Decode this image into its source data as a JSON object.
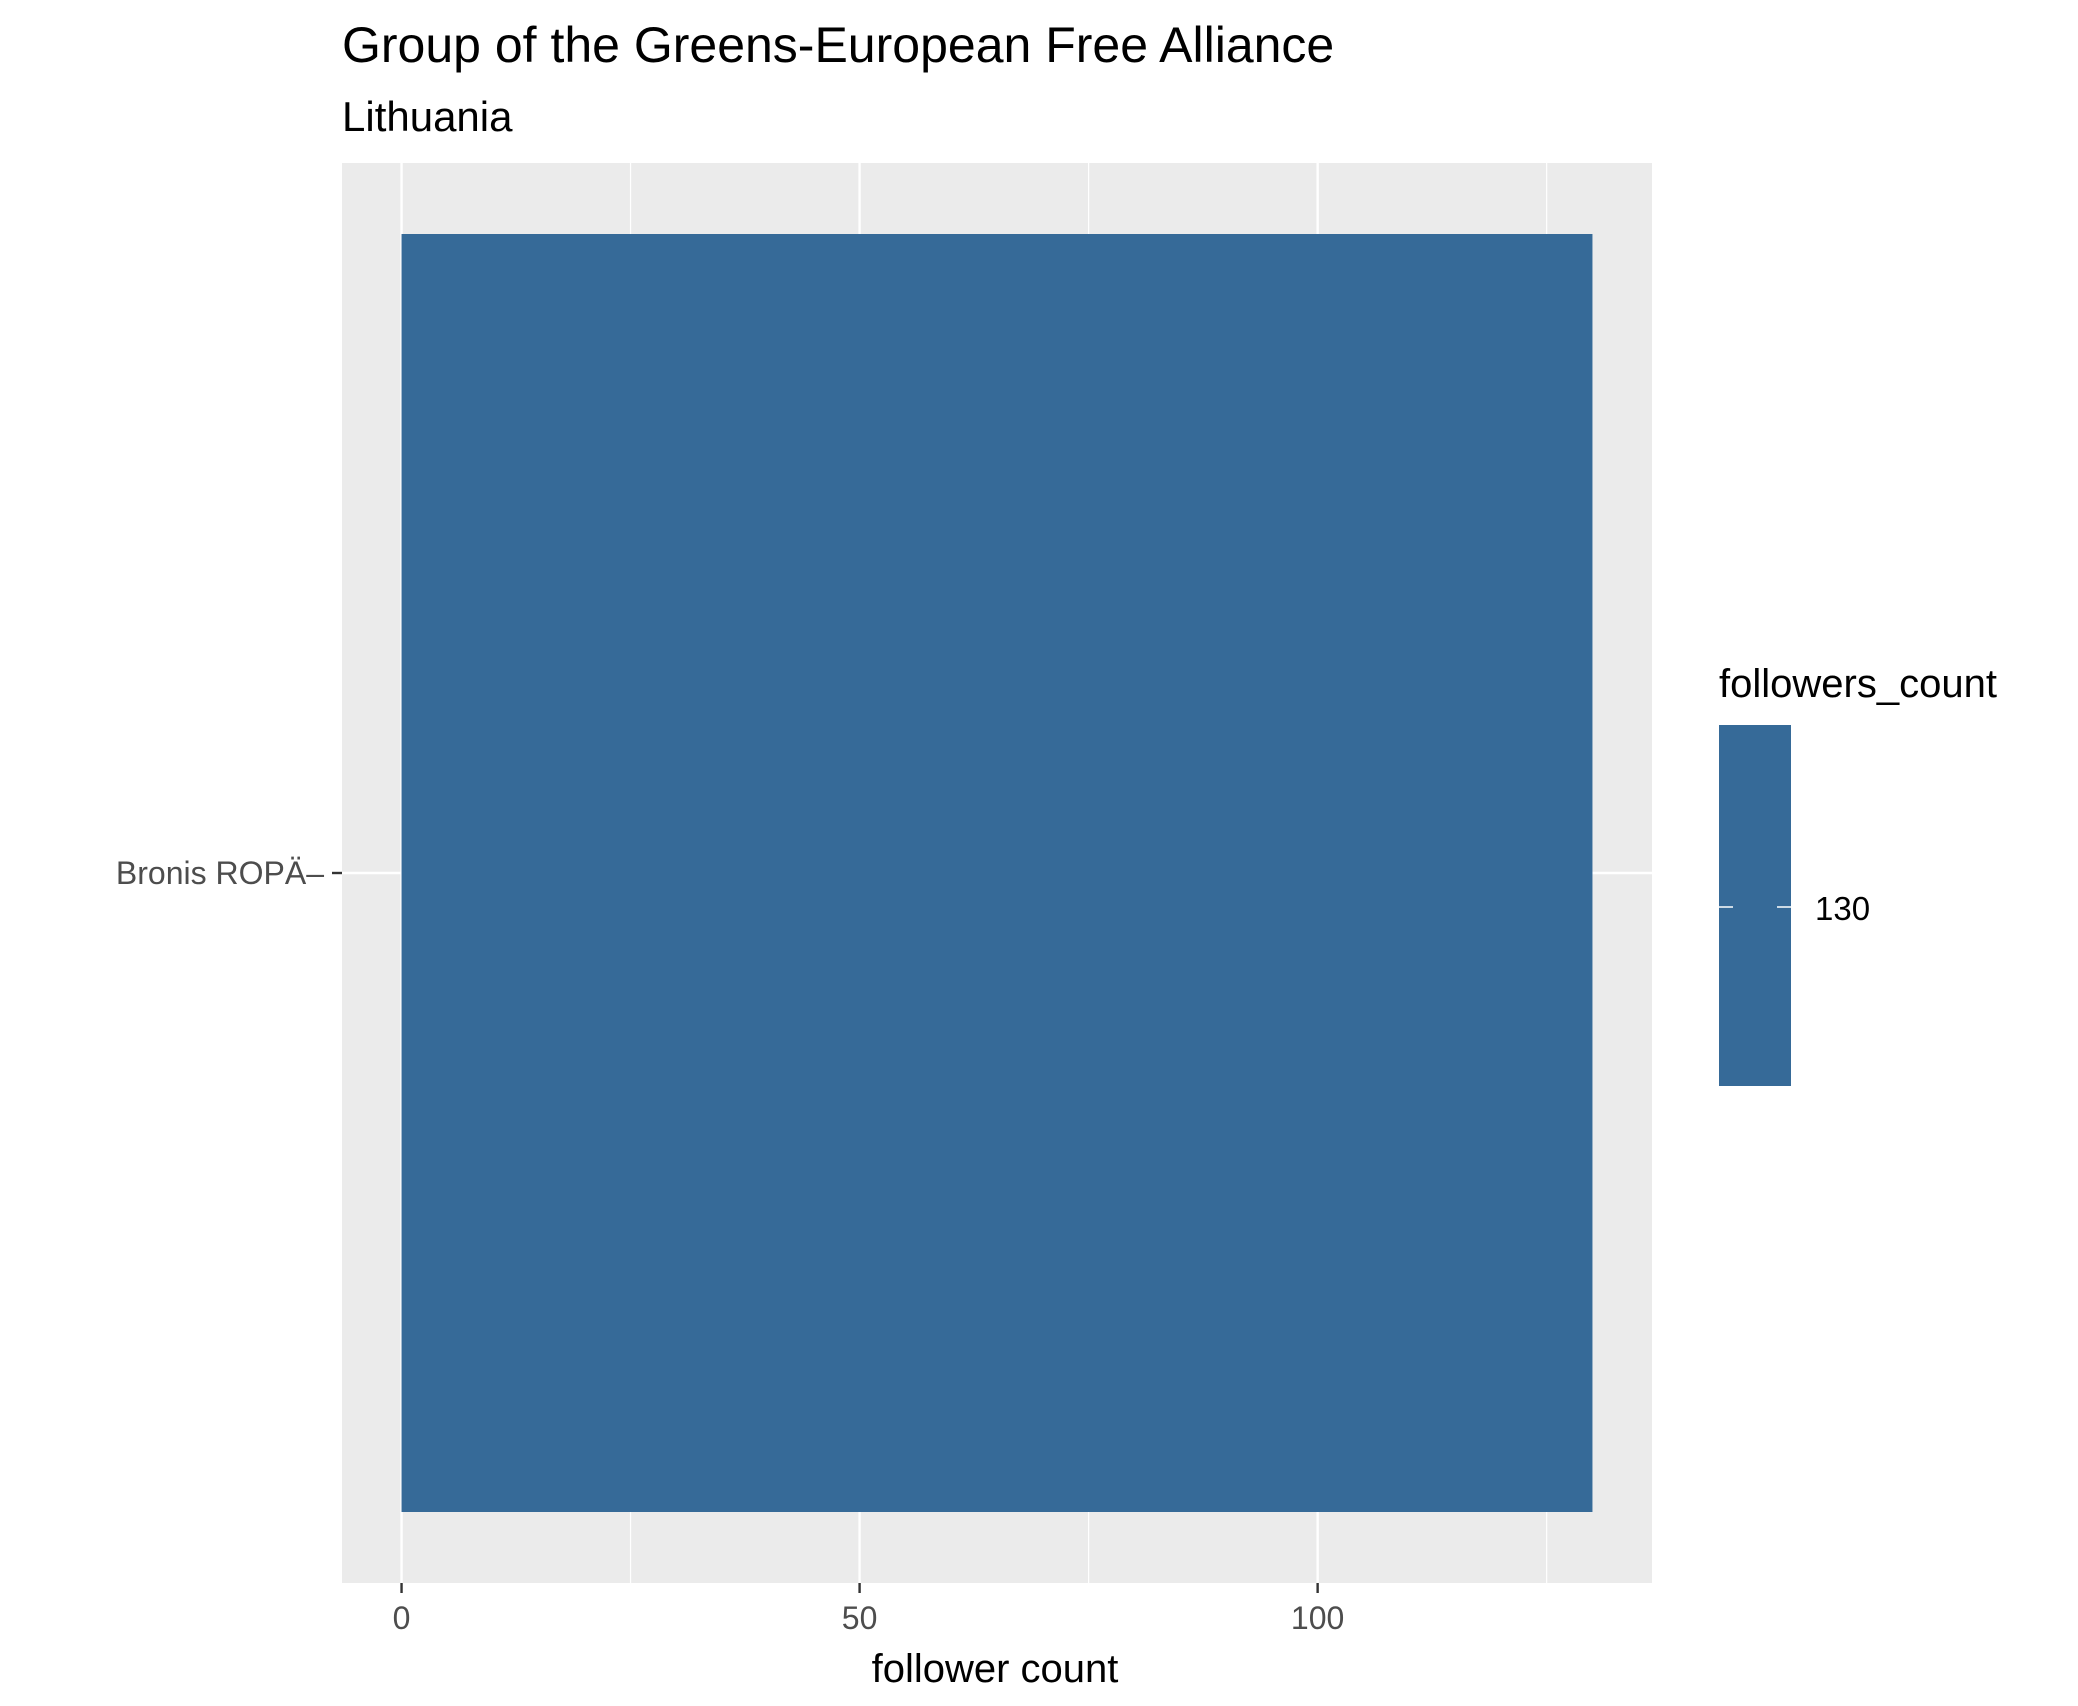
{
  "chart_data": {
    "type": "bar",
    "orientation": "horizontal",
    "title": "Group of the Greens-European Free Alliance",
    "subtitle": "Lithuania",
    "xlabel": "follower count",
    "ylabel": "",
    "categories": [
      "Bronis ROPÄ–"
    ],
    "values": [
      130
    ],
    "xlim": [
      -6.5,
      136.5
    ],
    "x_ticks": [
      0,
      50,
      100
    ],
    "x_minor_ticks": [
      25,
      75,
      125
    ],
    "grid": true,
    "bar_color": "#366a98",
    "panel_background": "#ebebeb",
    "grid_color": "#ffffff",
    "legend": {
      "title": "followers_count",
      "position": "right",
      "labels": [
        "130"
      ],
      "color": "#366a98"
    }
  }
}
